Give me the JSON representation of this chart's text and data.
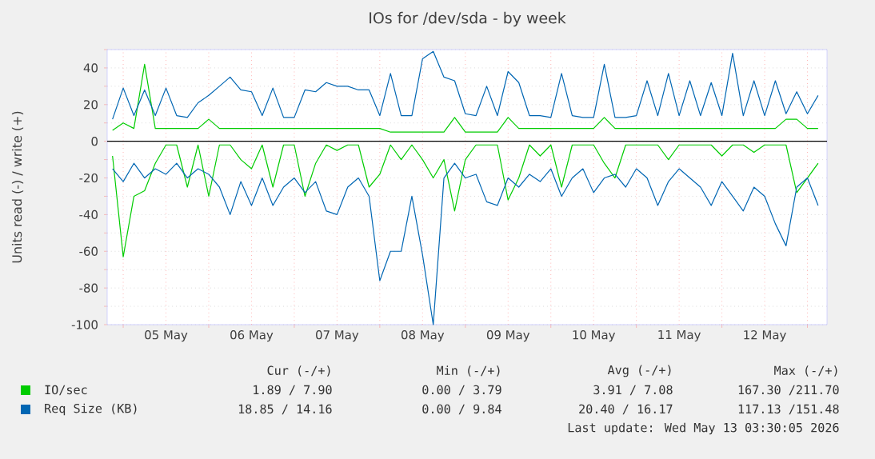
{
  "chart_data": {
    "type": "line",
    "title": "IOs for /dev/sda - by week",
    "ylabel": "Units read (-) / write (+)",
    "x": [
      "2026-05-04T21:00",
      "2026-05-05T00:00",
      "2026-05-05T03:00",
      "2026-05-05T06:00",
      "2026-05-05T09:00",
      "2026-05-05T12:00",
      "2026-05-05T15:00",
      "2026-05-05T18:00",
      "2026-05-05T21:00",
      "2026-05-06T00:00",
      "2026-05-06T03:00",
      "2026-05-06T06:00",
      "2026-05-06T09:00",
      "2026-05-06T12:00",
      "2026-05-06T15:00",
      "2026-05-06T18:00",
      "2026-05-06T21:00",
      "2026-05-07T00:00",
      "2026-05-07T03:00",
      "2026-05-07T06:00",
      "2026-05-07T09:00",
      "2026-05-07T12:00",
      "2026-05-07T15:00",
      "2026-05-07T18:00",
      "2026-05-07T21:00",
      "2026-05-08T00:00",
      "2026-05-08T03:00",
      "2026-05-08T06:00",
      "2026-05-08T09:00",
      "2026-05-08T12:00",
      "2026-05-08T15:00",
      "2026-05-08T18:00",
      "2026-05-08T21:00",
      "2026-05-09T00:00",
      "2026-05-09T03:00",
      "2026-05-09T06:00",
      "2026-05-09T09:00",
      "2026-05-09T12:00",
      "2026-05-09T15:00",
      "2026-05-09T18:00",
      "2026-05-09T21:00",
      "2026-05-10T00:00",
      "2026-05-10T03:00",
      "2026-05-10T06:00",
      "2026-05-10T09:00",
      "2026-05-10T12:00",
      "2026-05-10T15:00",
      "2026-05-10T18:00",
      "2026-05-10T21:00",
      "2026-05-11T00:00",
      "2026-05-11T03:00",
      "2026-05-11T06:00",
      "2026-05-11T09:00",
      "2026-05-11T12:00",
      "2026-05-11T15:00",
      "2026-05-11T18:00",
      "2026-05-11T21:00",
      "2026-05-12T00:00",
      "2026-05-12T03:00",
      "2026-05-12T06:00",
      "2026-05-12T09:00",
      "2026-05-12T12:00",
      "2026-05-12T15:00",
      "2026-05-12T18:00",
      "2026-05-12T21:00",
      "2026-05-13T00:00",
      "2026-05-13T03:00"
    ],
    "series": [
      {
        "name": "IO/sec",
        "color": "#00cc00",
        "values": [
          6,
          10,
          7,
          42,
          7,
          7,
          7,
          7,
          7,
          12,
          7,
          7,
          7,
          7,
          7,
          7,
          7,
          7,
          7,
          7,
          7,
          7,
          7,
          7,
          7,
          7,
          5,
          5,
          5,
          5,
          5,
          5,
          13,
          5,
          5,
          5,
          5,
          13,
          7,
          7,
          7,
          7,
          7,
          7,
          7,
          7,
          13,
          7,
          7,
          7,
          7,
          7,
          7,
          7,
          7,
          7,
          7,
          7,
          7,
          7,
          7,
          7,
          7,
          12,
          12,
          7,
          7
        ]
      },
      {
        "color": "#00cc00",
        "values": [
          -8,
          -63,
          -30,
          -27,
          -12,
          -2,
          -2,
          -25,
          -2,
          -30,
          -2,
          -2,
          -10,
          -15,
          -2,
          -25,
          -2,
          -2,
          -30,
          -12,
          -2,
          -5,
          -2,
          -2,
          -25,
          -18,
          -2,
          -10,
          -2,
          -10,
          -20,
          -10,
          -38,
          -10,
          -2,
          -2,
          -2,
          -32,
          -20,
          -2,
          -8,
          -2,
          -25,
          -2,
          -2,
          -2,
          -12,
          -20,
          -2,
          -2,
          -2,
          -2,
          -10,
          -2,
          -2,
          -2,
          -2,
          -8,
          -2,
          -2,
          -6,
          -2,
          -2,
          -2,
          -28,
          -20,
          -12
        ]
      },
      {
        "name": "Req Size (KB)",
        "color": "#0066b3",
        "values": [
          12,
          29,
          14,
          28,
          14,
          29,
          14,
          13,
          21,
          25,
          30,
          35,
          28,
          27,
          14,
          29,
          13,
          13,
          28,
          27,
          32,
          30,
          30,
          28,
          28,
          14,
          37,
          14,
          14,
          45,
          49,
          35,
          33,
          15,
          14,
          30,
          14,
          38,
          32,
          14,
          14,
          13,
          37,
          14,
          13,
          13,
          42,
          13,
          13,
          14,
          33,
          14,
          37,
          14,
          33,
          14,
          32,
          14,
          48,
          14,
          33,
          14,
          33,
          15,
          27,
          15,
          25
        ]
      },
      {
        "color": "#0066b3",
        "values": [
          -15,
          -22,
          -12,
          -20,
          -15,
          -18,
          -12,
          -20,
          -15,
          -18,
          -25,
          -40,
          -22,
          -35,
          -20,
          -35,
          -25,
          -20,
          -28,
          -22,
          -38,
          -40,
          -25,
          -20,
          -30,
          -76,
          -60,
          -60,
          -30,
          -62,
          -100,
          -20,
          -12,
          -20,
          -18,
          -33,
          -35,
          -20,
          -25,
          -18,
          -22,
          -15,
          -30,
          -20,
          -15,
          -28,
          -20,
          -18,
          -25,
          -15,
          -20,
          -35,
          -22,
          -15,
          -20,
          -25,
          -35,
          -22,
          -30,
          -38,
          -25,
          -30,
          -45,
          -57,
          -25,
          -20,
          -35
        ]
      }
    ],
    "xlim": [
      "2026-05-04T19:30",
      "2026-05-13T05:30"
    ],
    "xticks": [
      {
        "value": "2026-05-05T00:00",
        "label": null
      },
      {
        "value": "2026-05-05T12:00",
        "label": "05 May"
      },
      {
        "value": "2026-05-06T00:00",
        "label": null
      },
      {
        "value": "2026-05-06T12:00",
        "label": "06 May"
      },
      {
        "value": "2026-05-07T00:00",
        "label": null
      },
      {
        "value": "2026-05-07T12:00",
        "label": "07 May"
      },
      {
        "value": "2026-05-08T00:00",
        "label": null
      },
      {
        "value": "2026-05-08T12:00",
        "label": "08 May"
      },
      {
        "value": "2026-05-09T00:00",
        "label": null
      },
      {
        "value": "2026-05-09T12:00",
        "label": "09 May"
      },
      {
        "value": "2026-05-10T00:00",
        "label": null
      },
      {
        "value": "2026-05-10T12:00",
        "label": "10 May"
      },
      {
        "value": "2026-05-11T00:00",
        "label": null
      },
      {
        "value": "2026-05-11T12:00",
        "label": "11 May"
      },
      {
        "value": "2026-05-12T00:00",
        "label": null
      },
      {
        "value": "2026-05-12T12:00",
        "label": "12 May"
      },
      {
        "value": "2026-05-13T00:00",
        "label": null
      }
    ],
    "ylim": [
      -100,
      50
    ],
    "yticks": [
      -100,
      {
        "value": -90,
        "label": null
      },
      -80,
      {
        "value": -70,
        "label": null
      },
      -60,
      {
        "value": -50,
        "label": null
      },
      -40,
      {
        "value": -30,
        "label": null
      },
      -20,
      {
        "value": -10,
        "label": null
      },
      0,
      {
        "value": 10,
        "label": null
      },
      20,
      {
        "value": 30,
        "label": null
      },
      40,
      {
        "value": 50,
        "label": null
      }
    ],
    "grid": true,
    "legend": "bottom",
    "ref_lines": [
      {
        "axis": "y",
        "value": 0,
        "color": "#000000"
      }
    ],
    "annotations": [
      "Cur (-/+)",
      "Min (-/+)",
      "Avg (-/+)",
      "Max (-/+)",
      "1.89 /  7.90",
      "0.00 /  3.79",
      "3.91 /  7.08",
      "167.30 /211.70",
      "18.85 / 14.16",
      "0.00 /  9.84",
      "20.40 / 16.17",
      "117.13 /151.48",
      "Last update: Wed May 13 03:30:05 2026"
    ]
  }
}
